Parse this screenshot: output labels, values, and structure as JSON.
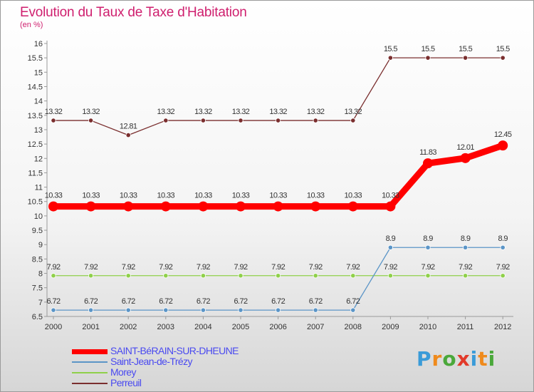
{
  "title": "Evolution du Taux de Taxe d'Habitation",
  "subtitle": "(en %)",
  "logo": {
    "letters": [
      "P",
      "r",
      "o",
      "x",
      "i",
      "t",
      "i"
    ],
    "colors": [
      "#3a9bd8",
      "#ef8a1c",
      "#4aa83a",
      "#e23a2a",
      "#3a9bd8",
      "#ef8a1c",
      "#4aa83a"
    ]
  },
  "chart_data": {
    "type": "line",
    "title": "Evolution du Taux de Taxe d'Habitation",
    "ylabel": "(en %)",
    "xlabel": "",
    "x": [
      "2000",
      "2001",
      "2002",
      "2003",
      "2004",
      "2005",
      "2006",
      "2007",
      "2008",
      "2009",
      "2010",
      "2011",
      "2012"
    ],
    "ylim": [
      6.5,
      16
    ],
    "yticks": [
      "6.5",
      "7",
      "7.5",
      "8",
      "8.5",
      "9",
      "9.5",
      "10",
      "10.5",
      "11",
      "11.5",
      "12",
      "12.5",
      "13",
      "13.5",
      "14",
      "14.5",
      "15",
      "15.5",
      "16"
    ],
    "legend_position": "bottom-left",
    "grid": false,
    "series": [
      {
        "name": "SAINT-BéRAIN-SUR-DHEUNE",
        "color": "#ff0000",
        "values": [
          10.33,
          10.33,
          10.33,
          10.33,
          10.33,
          10.33,
          10.33,
          10.33,
          10.33,
          10.33,
          11.83,
          12.01,
          12.45
        ],
        "labels": [
          "10.33",
          "10.33",
          "10.33",
          "10.33",
          "10.33",
          "10.33",
          "10.33",
          "10.33",
          "10.33",
          "10.33",
          "11.83",
          "12.01",
          "12.45"
        ]
      },
      {
        "name": "Saint-Jean-de-Trézy",
        "color": "#5b95c7",
        "values": [
          6.72,
          6.72,
          6.72,
          6.72,
          6.72,
          6.72,
          6.72,
          6.72,
          6.72,
          8.9,
          8.9,
          8.9,
          8.9
        ],
        "labels": [
          "6.72",
          "6.72",
          "6.72",
          "6.72",
          "6.72",
          "6.72",
          "6.72",
          "6.72",
          "6.72",
          "8.9",
          "8.9",
          "8.9",
          "8.9"
        ]
      },
      {
        "name": "Morey",
        "color": "#8fd04a",
        "values": [
          7.92,
          7.92,
          7.92,
          7.92,
          7.92,
          7.92,
          7.92,
          7.92,
          7.92,
          7.92,
          7.92,
          7.92,
          7.92
        ],
        "labels": [
          "7.92",
          "7.92",
          "7.92",
          "7.92",
          "7.92",
          "7.92",
          "7.92",
          "7.92",
          "7.92",
          "7.92",
          "7.92",
          "7.92",
          "7.92"
        ]
      },
      {
        "name": "Perreuil",
        "color": "#7a2e2e",
        "values": [
          13.32,
          13.32,
          12.81,
          13.32,
          13.32,
          13.32,
          13.32,
          13.32,
          13.32,
          15.5,
          15.5,
          15.5,
          15.5
        ],
        "labels": [
          "13.32",
          "13.32",
          "12.81",
          "13.32",
          "13.32",
          "13.32",
          "13.32",
          "13.32",
          "13.32",
          "15.5",
          "15.5",
          "15.5",
          "15.5"
        ]
      }
    ]
  }
}
